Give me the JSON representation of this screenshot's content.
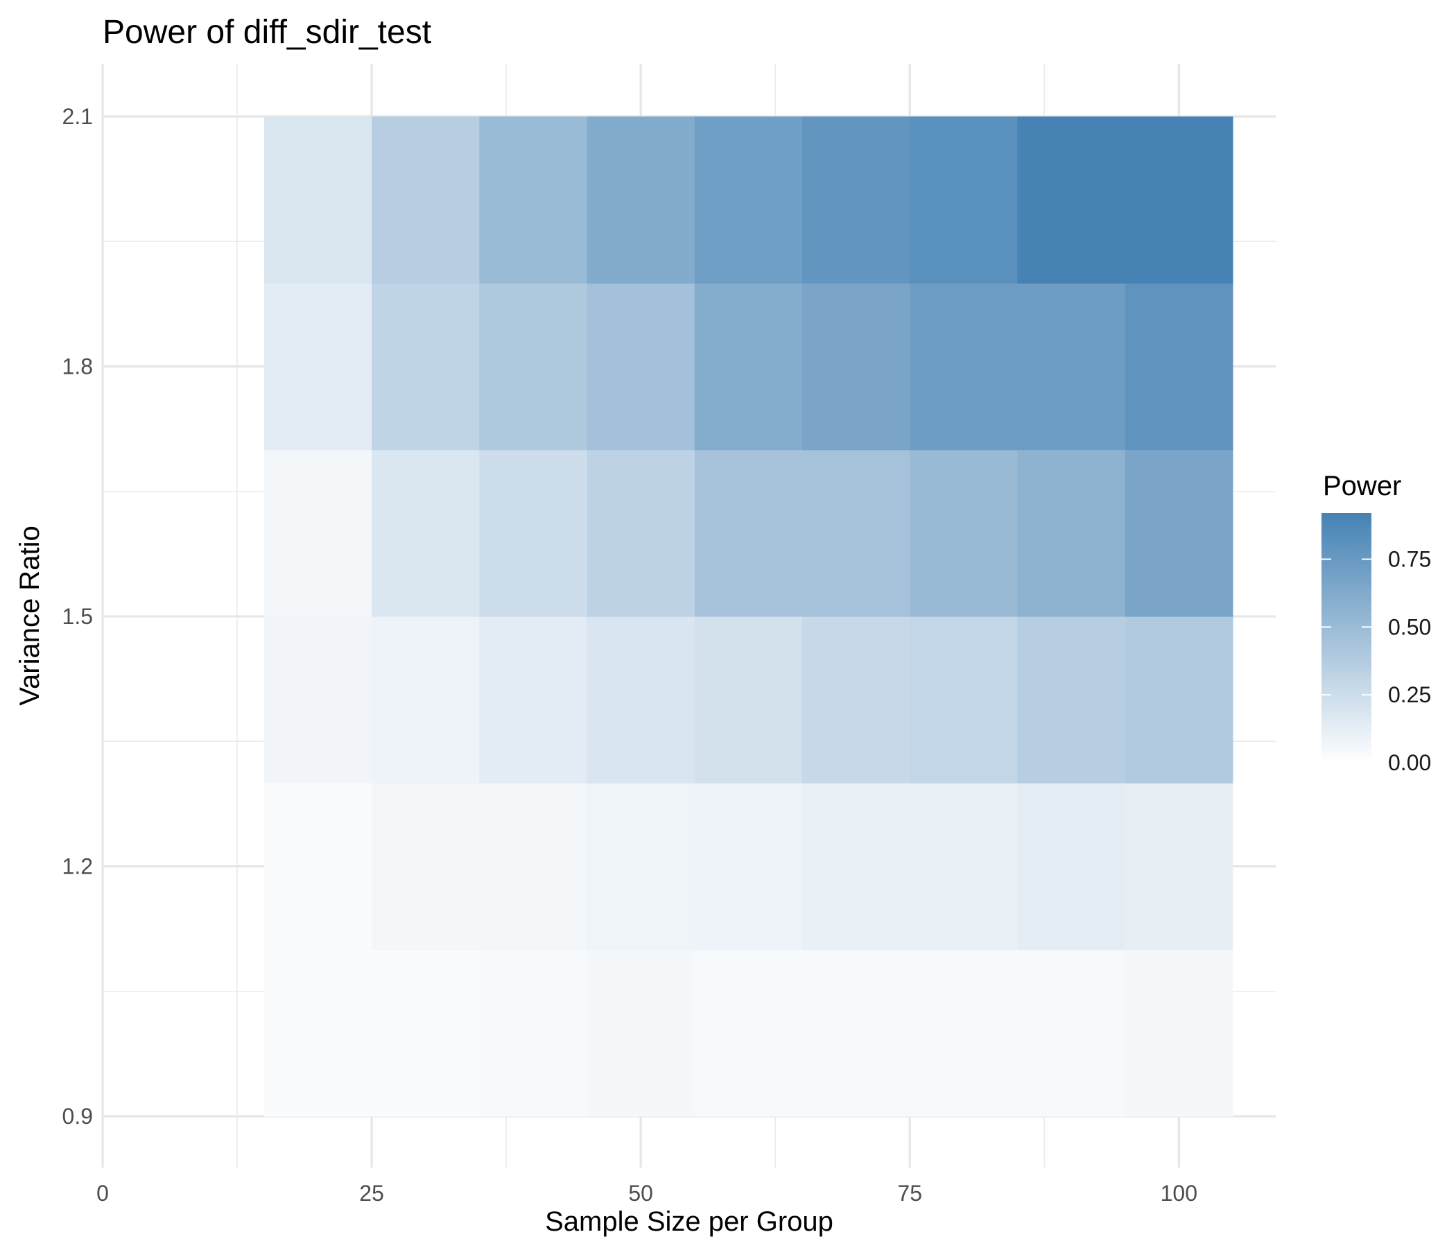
{
  "chart_data": {
    "type": "heatmap",
    "title": "Power of diff_sdir_test",
    "xlabel": "Sample Size per Group",
    "ylabel": "Variance Ratio",
    "x_ticks": [
      "0",
      "25",
      "50",
      "75",
      "100"
    ],
    "y_ticks": [
      "0.9",
      "1.2",
      "1.5",
      "1.8",
      "2.1"
    ],
    "xlim": [
      0,
      109
    ],
    "ylim": [
      0.9,
      2.1
    ],
    "grid": true,
    "x": [
      20,
      30,
      40,
      50,
      60,
      70,
      80,
      90,
      100
    ],
    "y": [
      1.0,
      1.2,
      1.4,
      1.6,
      1.8,
      2.0
    ],
    "y_edges": [
      0.9,
      1.1,
      1.3,
      1.5,
      1.7,
      1.9,
      2.1
    ],
    "values": [
      [
        0.03,
        0.03,
        0.04,
        0.05,
        0.04,
        0.04,
        0.04,
        0.04,
        0.05
      ],
      [
        0.03,
        0.06,
        0.06,
        0.08,
        0.09,
        0.11,
        0.11,
        0.13,
        0.12
      ],
      [
        0.07,
        0.09,
        0.14,
        0.19,
        0.22,
        0.28,
        0.3,
        0.36,
        0.39
      ],
      [
        0.06,
        0.18,
        0.25,
        0.33,
        0.44,
        0.45,
        0.51,
        0.56,
        0.66
      ],
      [
        0.14,
        0.32,
        0.4,
        0.46,
        0.61,
        0.66,
        0.72,
        0.72,
        0.79
      ],
      [
        0.18,
        0.36,
        0.5,
        0.62,
        0.71,
        0.78,
        0.82,
        0.92,
        0.92
      ]
    ],
    "legend": {
      "title": "Power",
      "ticks": [
        "0.00",
        "0.25",
        "0.50",
        "0.75"
      ],
      "placement": "right",
      "low_color": "#ffffff",
      "high_color": "#4682b4",
      "max": 0.92
    }
  }
}
